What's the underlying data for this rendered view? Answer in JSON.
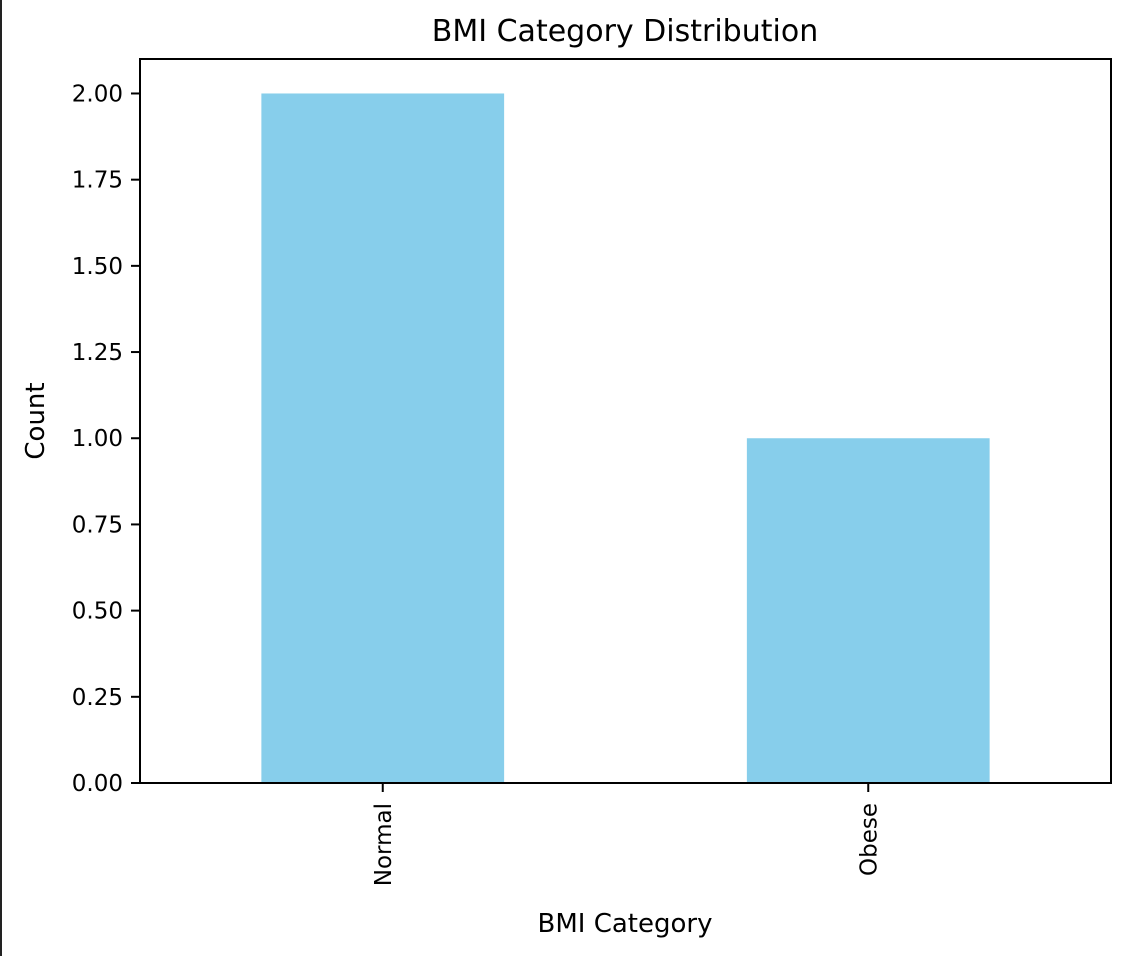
{
  "chart_data": {
    "type": "bar",
    "title": "BMI Category Distribution",
    "xlabel": "BMI Category",
    "ylabel": "Count",
    "categories": [
      "Normal",
      "Obese"
    ],
    "values": [
      2,
      1
    ],
    "ylim": [
      0,
      2.1
    ],
    "yticks": [
      "0.00",
      "0.25",
      "0.50",
      "0.75",
      "1.00",
      "1.25",
      "1.50",
      "1.75",
      "2.00"
    ],
    "ytick_values": [
      0,
      0.25,
      0.5,
      0.75,
      1.0,
      1.25,
      1.5,
      1.75,
      2.0
    ],
    "bar_color": "#87CEEB",
    "grid": false,
    "legend": "none"
  }
}
